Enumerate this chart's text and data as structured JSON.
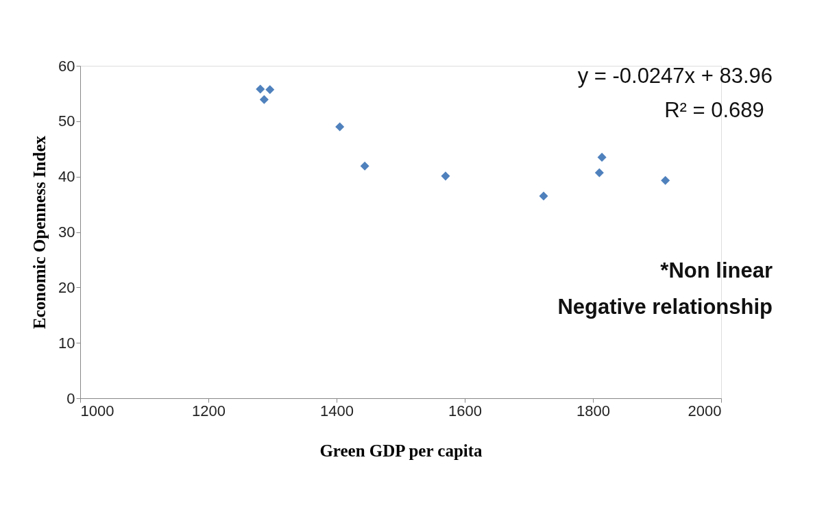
{
  "chart_data": {
    "type": "scatter",
    "xlabel": "Green GDP per capita",
    "ylabel": "Economic Openness Index",
    "x": [
      1281,
      1287,
      1296,
      1405,
      1444,
      1570,
      1723,
      1810,
      1814,
      1913
    ],
    "series": [
      {
        "color": "#4f81bd",
        "values": [
          55.8,
          53.9,
          55.7,
          49.0,
          41.9,
          40.1,
          36.5,
          40.7,
          43.5,
          39.3
        ]
      }
    ],
    "xlim": [
      1000,
      2000
    ],
    "xticks": [
      1000,
      1200,
      1400,
      1600,
      1800,
      2000
    ],
    "ylim": [
      0,
      60
    ],
    "yticks": [
      0,
      10,
      20,
      30,
      40,
      50,
      60
    ],
    "marker": "diamond",
    "grid": false,
    "annotations": [
      "y = -0.0247x + 83.96",
      "R² = 0.689",
      "*Non linear",
      "Negative   relationship"
    ]
  }
}
